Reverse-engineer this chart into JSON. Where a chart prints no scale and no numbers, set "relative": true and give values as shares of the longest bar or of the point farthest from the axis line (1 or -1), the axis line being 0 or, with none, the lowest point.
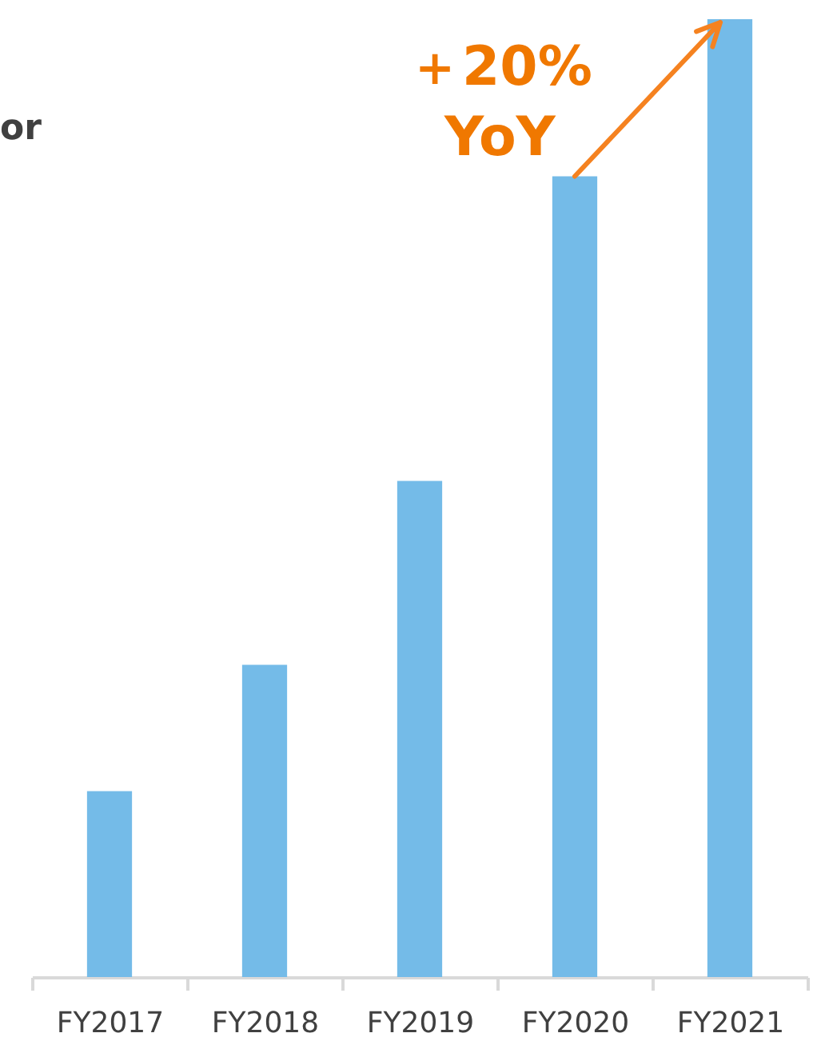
{
  "chart_data": {
    "type": "bar",
    "relative": true,
    "categories": [
      "FY2017",
      "FY2018",
      "FY2019",
      "FY2020",
      "FY2021"
    ],
    "values": [
      0.194,
      0.326,
      0.518,
      0.836,
      1
    ],
    "color": "#74bbe8",
    "annotations": [
      "or",
      "＋20%\nYoY"
    ]
  }
}
